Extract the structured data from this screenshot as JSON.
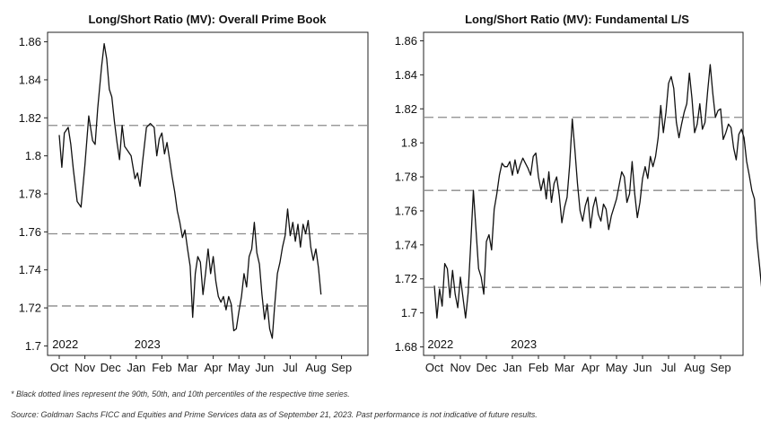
{
  "chart_data": [
    {
      "type": "line",
      "title": "Long/Short Ratio (MV): Overall Prime Book",
      "xlabel": "",
      "ylabel": "",
      "ylim": [
        1.695,
        1.865
      ],
      "y_ticks": [
        1.7,
        1.72,
        1.74,
        1.76,
        1.78,
        1.8,
        1.82,
        1.84,
        1.86
      ],
      "y_tick_labels": [
        "1.7",
        "1.72",
        "1.74",
        "1.76",
        "1.78",
        "1.8",
        "1.82",
        "1.84",
        "1.86"
      ],
      "x_tick_labels": [
        "Oct",
        "Nov",
        "Dec",
        "Jan",
        "Feb",
        "Mar",
        "Apr",
        "May",
        "Jun",
        "Jul",
        "Aug",
        "Sep"
      ],
      "year_labels": [
        {
          "text": "2022",
          "at": 0.15
        },
        {
          "text": "2023",
          "at": 3.35
        }
      ],
      "percentile_lines": [
        1.816,
        1.759,
        1.721
      ],
      "grid": false,
      "series": [
        {
          "values": [
            [
              0.0,
              1.811
            ],
            [
              0.1,
              1.794
            ],
            [
              0.2,
              1.812
            ],
            [
              0.35,
              1.815
            ],
            [
              0.45,
              1.806
            ],
            [
              0.55,
              1.793
            ],
            [
              0.7,
              1.776
            ],
            [
              0.85,
              1.773
            ],
            [
              1.0,
              1.795
            ],
            [
              1.15,
              1.821
            ],
            [
              1.3,
              1.808
            ],
            [
              1.4,
              1.806
            ],
            [
              1.5,
              1.825
            ],
            [
              1.65,
              1.847
            ],
            [
              1.75,
              1.859
            ],
            [
              1.85,
              1.851
            ],
            [
              1.95,
              1.835
            ],
            [
              2.05,
              1.831
            ],
            [
              2.15,
              1.818
            ],
            [
              2.25,
              1.807
            ],
            [
              2.35,
              1.798
            ],
            [
              2.45,
              1.816
            ],
            [
              2.55,
              1.805
            ],
            [
              2.65,
              1.803
            ],
            [
              2.8,
              1.8
            ],
            [
              2.95,
              1.788
            ],
            [
              3.05,
              1.791
            ],
            [
              3.15,
              1.784
            ],
            [
              3.25,
              1.797
            ],
            [
              3.4,
              1.815
            ],
            [
              3.55,
              1.817
            ],
            [
              3.7,
              1.815
            ],
            [
              3.8,
              1.8
            ],
            [
              3.9,
              1.809
            ],
            [
              4.0,
              1.812
            ],
            [
              4.1,
              1.801
            ],
            [
              4.2,
              1.807
            ],
            [
              4.3,
              1.798
            ],
            [
              4.4,
              1.789
            ],
            [
              4.5,
              1.781
            ],
            [
              4.6,
              1.771
            ],
            [
              4.7,
              1.765
            ],
            [
              4.8,
              1.757
            ],
            [
              4.9,
              1.761
            ],
            [
              5.0,
              1.751
            ],
            [
              5.1,
              1.742
            ],
            [
              5.2,
              1.715
            ],
            [
              5.3,
              1.738
            ],
            [
              5.4,
              1.747
            ],
            [
              5.5,
              1.744
            ],
            [
              5.6,
              1.727
            ],
            [
              5.7,
              1.738
            ],
            [
              5.8,
              1.751
            ],
            [
              5.9,
              1.738
            ],
            [
              6.0,
              1.747
            ],
            [
              6.1,
              1.734
            ],
            [
              6.2,
              1.726
            ],
            [
              6.3,
              1.723
            ],
            [
              6.4,
              1.726
            ],
            [
              6.5,
              1.719
            ],
            [
              6.6,
              1.726
            ],
            [
              6.7,
              1.722
            ],
            [
              6.8,
              1.708
            ],
            [
              6.9,
              1.709
            ],
            [
              7.0,
              1.718
            ],
            [
              7.1,
              1.726
            ],
            [
              7.2,
              1.738
            ],
            [
              7.3,
              1.731
            ],
            [
              7.4,
              1.747
            ],
            [
              7.5,
              1.751
            ],
            [
              7.6,
              1.765
            ],
            [
              7.7,
              1.749
            ],
            [
              7.8,
              1.743
            ],
            [
              7.9,
              1.727
            ],
            [
              8.0,
              1.714
            ],
            [
              8.1,
              1.722
            ],
            [
              8.2,
              1.709
            ],
            [
              8.3,
              1.704
            ],
            [
              8.4,
              1.722
            ],
            [
              8.5,
              1.738
            ],
            [
              8.6,
              1.744
            ],
            [
              8.7,
              1.752
            ],
            [
              8.8,
              1.758
            ],
            [
              8.9,
              1.772
            ],
            [
              9.0,
              1.758
            ],
            [
              9.1,
              1.765
            ],
            [
              9.2,
              1.755
            ],
            [
              9.3,
              1.764
            ],
            [
              9.4,
              1.752
            ],
            [
              9.5,
              1.764
            ],
            [
              9.6,
              1.759
            ],
            [
              9.7,
              1.766
            ],
            [
              9.8,
              1.752
            ],
            [
              9.9,
              1.745
            ],
            [
              10.0,
              1.751
            ],
            [
              10.1,
              1.741
            ],
            [
              10.2,
              1.727
            ]
          ]
        }
      ]
    },
    {
      "type": "line",
      "title": "Long/Short Ratio (MV): Fundamental L/S",
      "xlabel": "",
      "ylabel": "",
      "ylim": [
        1.675,
        1.865
      ],
      "y_ticks": [
        1.68,
        1.7,
        1.72,
        1.74,
        1.76,
        1.78,
        1.8,
        1.82,
        1.84,
        1.86
      ],
      "y_tick_labels": [
        "1.68",
        "1.7",
        "1.72",
        "1.74",
        "1.76",
        "1.78",
        "1.8",
        "1.82",
        "1.84",
        "1.86"
      ],
      "x_tick_labels": [
        "Oct",
        "Nov",
        "Dec",
        "Jan",
        "Feb",
        "Mar",
        "Apr",
        "May",
        "Jun",
        "Jul",
        "Aug",
        "Sep"
      ],
      "year_labels": [
        {
          "text": "2022",
          "at": 0.15
        },
        {
          "text": "2023",
          "at": 3.35
        }
      ],
      "percentile_lines": [
        1.815,
        1.772,
        1.715
      ],
      "grid": false,
      "series": [
        {
          "values": [
            [
              0.0,
              1.716
            ],
            [
              0.1,
              1.697
            ],
            [
              0.2,
              1.714
            ],
            [
              0.3,
              1.704
            ],
            [
              0.4,
              1.729
            ],
            [
              0.5,
              1.726
            ],
            [
              0.6,
              1.709
            ],
            [
              0.7,
              1.725
            ],
            [
              0.8,
              1.711
            ],
            [
              0.9,
              1.703
            ],
            [
              1.0,
              1.721
            ],
            [
              1.1,
              1.709
            ],
            [
              1.2,
              1.697
            ],
            [
              1.3,
              1.712
            ],
            [
              1.4,
              1.741
            ],
            [
              1.5,
              1.772
            ],
            [
              1.6,
              1.749
            ],
            [
              1.7,
              1.726
            ],
            [
              1.8,
              1.721
            ],
            [
              1.9,
              1.711
            ],
            [
              2.0,
              1.742
            ],
            [
              2.1,
              1.746
            ],
            [
              2.2,
              1.737
            ],
            [
              2.3,
              1.761
            ],
            [
              2.4,
              1.77
            ],
            [
              2.5,
              1.781
            ],
            [
              2.6,
              1.788
            ],
            [
              2.7,
              1.786
            ],
            [
              2.8,
              1.786
            ],
            [
              2.9,
              1.789
            ],
            [
              3.0,
              1.781
            ],
            [
              3.1,
              1.79
            ],
            [
              3.2,
              1.782
            ],
            [
              3.3,
              1.787
            ],
            [
              3.4,
              1.791
            ],
            [
              3.5,
              1.788
            ],
            [
              3.6,
              1.785
            ],
            [
              3.7,
              1.781
            ],
            [
              3.8,
              1.792
            ],
            [
              3.9,
              1.794
            ],
            [
              4.0,
              1.78
            ],
            [
              4.1,
              1.772
            ],
            [
              4.2,
              1.779
            ],
            [
              4.3,
              1.767
            ],
            [
              4.4,
              1.783
            ],
            [
              4.5,
              1.765
            ],
            [
              4.6,
              1.776
            ],
            [
              4.7,
              1.78
            ],
            [
              4.8,
              1.769
            ],
            [
              4.9,
              1.753
            ],
            [
              5.0,
              1.762
            ],
            [
              5.1,
              1.768
            ],
            [
              5.2,
              1.787
            ],
            [
              5.3,
              1.814
            ],
            [
              5.4,
              1.796
            ],
            [
              5.5,
              1.776
            ],
            [
              5.6,
              1.76
            ],
            [
              5.7,
              1.754
            ],
            [
              5.8,
              1.763
            ],
            [
              5.9,
              1.768
            ],
            [
              6.0,
              1.75
            ],
            [
              6.1,
              1.762
            ],
            [
              6.2,
              1.768
            ],
            [
              6.3,
              1.758
            ],
            [
              6.4,
              1.754
            ],
            [
              6.5,
              1.764
            ],
            [
              6.6,
              1.761
            ],
            [
              6.7,
              1.749
            ],
            [
              6.8,
              1.757
            ],
            [
              6.9,
              1.762
            ],
            [
              7.0,
              1.767
            ],
            [
              7.1,
              1.775
            ],
            [
              7.2,
              1.783
            ],
            [
              7.3,
              1.78
            ],
            [
              7.4,
              1.765
            ],
            [
              7.5,
              1.77
            ],
            [
              7.6,
              1.789
            ],
            [
              7.7,
              1.77
            ],
            [
              7.8,
              1.756
            ],
            [
              7.9,
              1.765
            ],
            [
              8.0,
              1.779
            ],
            [
              8.1,
              1.786
            ],
            [
              8.2,
              1.779
            ],
            [
              8.3,
              1.792
            ],
            [
              8.4,
              1.786
            ],
            [
              8.5,
              1.792
            ],
            [
              8.6,
              1.803
            ],
            [
              8.7,
              1.822
            ],
            [
              8.8,
              1.806
            ],
            [
              8.9,
              1.818
            ],
            [
              9.0,
              1.835
            ],
            [
              9.1,
              1.839
            ],
            [
              9.2,
              1.832
            ],
            [
              9.3,
              1.812
            ],
            [
              9.4,
              1.803
            ],
            [
              9.5,
              1.811
            ],
            [
              9.6,
              1.818
            ],
            [
              9.7,
              1.823
            ],
            [
              9.8,
              1.841
            ],
            [
              9.9,
              1.826
            ],
            [
              10.0,
              1.806
            ],
            [
              10.1,
              1.811
            ],
            [
              10.2,
              1.823
            ],
            [
              10.3,
              1.808
            ],
            [
              10.4,
              1.812
            ],
            [
              10.5,
              1.83
            ],
            [
              10.6,
              1.846
            ],
            [
              10.7,
              1.829
            ],
            [
              10.8,
              1.815
            ],
            [
              10.9,
              1.819
            ],
            [
              11.0,
              1.82
            ],
            [
              11.1,
              1.802
            ],
            [
              11.2,
              1.806
            ],
            [
              11.3,
              1.811
            ],
            [
              11.4,
              1.809
            ],
            [
              11.5,
              1.797
            ],
            [
              11.6,
              1.79
            ],
            [
              11.7,
              1.805
            ],
            [
              11.8,
              1.808
            ],
            [
              11.9,
              1.803
            ],
            [
              12.0,
              1.789
            ],
            [
              12.1,
              1.781
            ],
            [
              12.2,
              1.772
            ],
            [
              12.3,
              1.767
            ],
            [
              12.4,
              1.742
            ],
            [
              12.5,
              1.727
            ],
            [
              12.6,
              1.711
            ]
          ]
        }
      ]
    }
  ],
  "footnotes": {
    "note": "* Black dotted lines represent the 90th, 50th, and 10th percentiles of the respective time series.",
    "source": "Source: Goldman Sachs FICC and Equities and Prime Services data as of September 21, 2023. Past performance is not indicative of future results."
  }
}
